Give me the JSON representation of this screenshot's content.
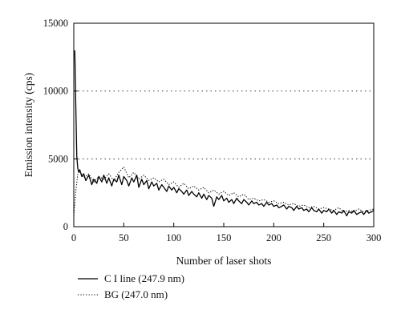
{
  "chart_data": {
    "type": "line",
    "xlabel": "Number of laser shots",
    "ylabel": "Emission intensity (cps)",
    "xlim": [
      0,
      300
    ],
    "ylim": [
      0,
      15000
    ],
    "x_ticks": [
      0,
      50,
      100,
      150,
      200,
      250,
      300
    ],
    "y_ticks": [
      0,
      5000,
      10000,
      15000
    ],
    "gridlines_y": [
      5000,
      10000
    ],
    "grid_style": "dotted horizontal",
    "legend_position": "below plot, left",
    "series": [
      {
        "name": "C I line (247.9 nm)",
        "style": "solid",
        "color": "#000000",
        "x": [
          1,
          2,
          3,
          4,
          5,
          6,
          8,
          10,
          12,
          15,
          18,
          20,
          23,
          25,
          28,
          30,
          33,
          35,
          38,
          40,
          43,
          45,
          48,
          50,
          53,
          55,
          58,
          60,
          63,
          65,
          68,
          70,
          73,
          75,
          78,
          80,
          83,
          85,
          88,
          90,
          93,
          95,
          98,
          100,
          103,
          105,
          108,
          110,
          113,
          115,
          118,
          120,
          123,
          125,
          128,
          130,
          133,
          135,
          138,
          140,
          143,
          145,
          148,
          150,
          153,
          155,
          158,
          160,
          163,
          165,
          168,
          170,
          173,
          175,
          178,
          180,
          183,
          185,
          188,
          190,
          193,
          195,
          198,
          200,
          203,
          205,
          208,
          210,
          213,
          215,
          218,
          220,
          223,
          225,
          228,
          230,
          233,
          235,
          238,
          240,
          243,
          245,
          248,
          250,
          253,
          255,
          258,
          260,
          263,
          265,
          268,
          270,
          273,
          275,
          278,
          280,
          283,
          285,
          288,
          290,
          293,
          295,
          298,
          300
        ],
        "y": [
          13000,
          9000,
          5200,
          4300,
          4000,
          4200,
          3700,
          3900,
          3400,
          3800,
          3100,
          3500,
          3200,
          3700,
          3300,
          3800,
          3200,
          3600,
          3000,
          3500,
          3300,
          3800,
          3100,
          3700,
          3400,
          3000,
          3600,
          3300,
          3800,
          2900,
          3500,
          3100,
          3400,
          2800,
          3300,
          3000,
          3200,
          2700,
          3100,
          2900,
          2600,
          3000,
          2700,
          2900,
          2500,
          2800,
          2600,
          2400,
          2700,
          2300,
          2600,
          2400,
          2200,
          2500,
          2100,
          2400,
          2000,
          2300,
          2100,
          1500,
          2200,
          2000,
          2300,
          1900,
          2100,
          1800,
          2000,
          1700,
          2100,
          1900,
          1700,
          2000,
          1800,
          1600,
          1900,
          1700,
          1800,
          1600,
          1700,
          1500,
          1800,
          1600,
          1700,
          1500,
          1600,
          1400,
          1500,
          1600,
          1300,
          1500,
          1400,
          1200,
          1500,
          1300,
          1400,
          1200,
          1300,
          1100,
          1400,
          1200,
          1100,
          1300,
          1000,
          1200,
          1100,
          1300,
          1000,
          1200,
          900,
          1100,
          1000,
          1200,
          800,
          1100,
          1000,
          1200,
          900,
          1000,
          1100,
          900,
          1200,
          1000,
          1100,
          1200
        ]
      },
      {
        "name": "BG (247.0 nm)",
        "style": "dotted",
        "color": "#000000",
        "x": [
          0,
          2,
          4,
          6,
          10,
          15,
          20,
          25,
          30,
          35,
          40,
          45,
          50,
          55,
          60,
          65,
          70,
          75,
          80,
          85,
          90,
          95,
          100,
          105,
          110,
          115,
          120,
          125,
          130,
          135,
          140,
          145,
          150,
          155,
          160,
          165,
          170,
          175,
          180,
          185,
          190,
          195,
          200,
          205,
          210,
          215,
          220,
          225,
          230,
          235,
          240,
          245,
          250,
          255,
          260,
          265,
          270,
          275,
          280,
          285,
          290,
          295,
          300
        ],
        "y": [
          800,
          2600,
          3900,
          4100,
          3600,
          3900,
          3300,
          3700,
          3500,
          3900,
          3400,
          4000,
          4400,
          3600,
          4000,
          3500,
          3800,
          3400,
          3600,
          3300,
          3500,
          3100,
          3300,
          2900,
          3200,
          2800,
          3000,
          2700,
          2900,
          2500,
          2700,
          2400,
          2600,
          2300,
          2500,
          2200,
          2400,
          2000,
          2100,
          1900,
          2000,
          1800,
          1900,
          1700,
          1800,
          1600,
          1700,
          1500,
          1600,
          1400,
          1500,
          1300,
          1400,
          1300,
          1200,
          1400,
          1100,
          1200,
          1100,
          1300,
          1100,
          1200,
          1300
        ]
      }
    ]
  }
}
